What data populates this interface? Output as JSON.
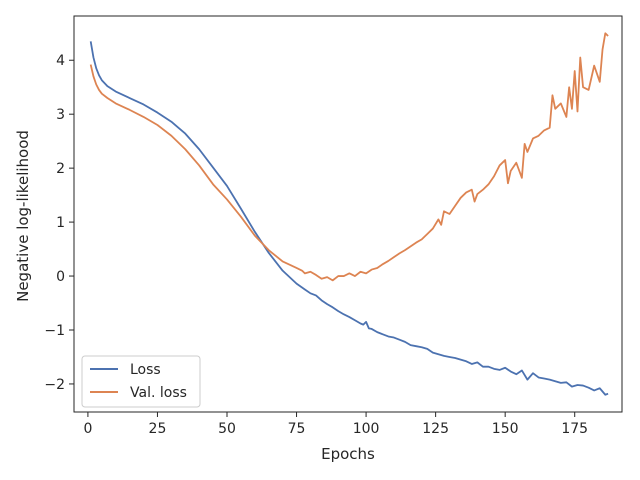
{
  "chart_data": {
    "type": "line",
    "xlabel": "Epochs",
    "ylabel": "Negative log-likelihood",
    "xlim": [
      -5,
      192
    ],
    "ylim": [
      -2.52,
      4.82
    ],
    "xticks": [
      0,
      25,
      50,
      75,
      100,
      125,
      150,
      175
    ],
    "yticks": [
      -2,
      -1,
      0,
      1,
      2,
      3,
      4
    ],
    "grid": false,
    "legend_position": "lower-left",
    "series": [
      {
        "name": "Loss",
        "color": "#4c72b0",
        "x": [
          1,
          2,
          3,
          4,
          5,
          7,
          10,
          15,
          20,
          25,
          30,
          35,
          40,
          45,
          50,
          55,
          60,
          65,
          70,
          75,
          78,
          80,
          82,
          84,
          86,
          88,
          90,
          92,
          94,
          96,
          98,
          99,
          100,
          101,
          102,
          104,
          106,
          108,
          110,
          112,
          114,
          116,
          118,
          120,
          122,
          124,
          126,
          128,
          130,
          132,
          134,
          136,
          138,
          140,
          142,
          144,
          146,
          148,
          150,
          152,
          154,
          156,
          158,
          160,
          162,
          164,
          166,
          168,
          170,
          172,
          174,
          176,
          178,
          180,
          182,
          184,
          186,
          187
        ],
        "values": [
          4.35,
          4.05,
          3.85,
          3.72,
          3.63,
          3.52,
          3.42,
          3.3,
          3.18,
          3.03,
          2.86,
          2.64,
          2.35,
          2.01,
          1.67,
          1.25,
          0.82,
          0.43,
          0.1,
          -0.14,
          -0.25,
          -0.32,
          -0.36,
          -0.45,
          -0.52,
          -0.58,
          -0.65,
          -0.71,
          -0.76,
          -0.82,
          -0.88,
          -0.9,
          -0.85,
          -0.97,
          -0.98,
          -1.04,
          -1.08,
          -1.12,
          -1.14,
          -1.18,
          -1.22,
          -1.28,
          -1.3,
          -1.32,
          -1.35,
          -1.42,
          -1.45,
          -1.48,
          -1.5,
          -1.52,
          -1.55,
          -1.58,
          -1.63,
          -1.6,
          -1.68,
          -1.68,
          -1.72,
          -1.74,
          -1.7,
          -1.77,
          -1.82,
          -1.75,
          -1.92,
          -1.8,
          -1.88,
          -1.9,
          -1.92,
          -1.95,
          -1.98,
          -1.97,
          -2.05,
          -2.02,
          -2.03,
          -2.07,
          -2.12,
          -2.08,
          -2.2,
          -2.18
        ]
      },
      {
        "name": "Val. loss",
        "color": "#dd8452",
        "x": [
          1,
          2,
          3,
          4,
          5,
          7,
          10,
          15,
          20,
          25,
          30,
          35,
          40,
          45,
          50,
          55,
          60,
          65,
          70,
          75,
          77,
          78,
          80,
          82,
          84,
          86,
          88,
          90,
          92,
          94,
          96,
          98,
          100,
          102,
          104,
          106,
          108,
          110,
          112,
          114,
          116,
          118,
          120,
          122,
          124,
          126,
          127,
          128,
          130,
          132,
          134,
          136,
          138,
          139,
          140,
          142,
          144,
          146,
          148,
          150,
          151,
          152,
          154,
          156,
          157,
          158,
          160,
          162,
          164,
          166,
          167,
          168,
          170,
          172,
          173,
          174,
          175,
          176,
          177,
          178,
          180,
          182,
          184,
          185,
          186,
          187
        ],
        "values": [
          3.92,
          3.7,
          3.55,
          3.45,
          3.38,
          3.3,
          3.2,
          3.08,
          2.95,
          2.8,
          2.6,
          2.35,
          2.05,
          1.7,
          1.42,
          1.1,
          0.75,
          0.48,
          0.27,
          0.15,
          0.1,
          0.05,
          0.08,
          0.02,
          -0.05,
          -0.02,
          -0.08,
          0.0,
          0.0,
          0.05,
          0.0,
          0.08,
          0.05,
          0.12,
          0.15,
          0.22,
          0.28,
          0.35,
          0.42,
          0.48,
          0.55,
          0.62,
          0.68,
          0.78,
          0.88,
          1.05,
          0.95,
          1.2,
          1.15,
          1.3,
          1.45,
          1.55,
          1.6,
          1.38,
          1.52,
          1.6,
          1.7,
          1.85,
          2.05,
          2.15,
          1.72,
          1.95,
          2.1,
          1.82,
          2.45,
          2.3,
          2.55,
          2.6,
          2.7,
          2.75,
          3.35,
          3.1,
          3.2,
          2.95,
          3.5,
          3.1,
          3.8,
          3.05,
          4.05,
          3.5,
          3.45,
          3.9,
          3.6,
          4.2,
          4.5,
          4.45
        ]
      }
    ]
  }
}
